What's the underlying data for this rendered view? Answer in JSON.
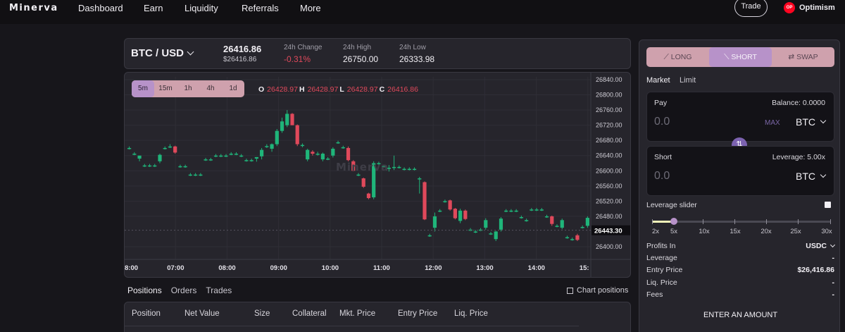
{
  "header": {
    "logo": "Minerva",
    "nav": [
      "Dashboard",
      "Earn",
      "Liquidity",
      "Referrals",
      "More"
    ],
    "trade_button": "Trade",
    "network": {
      "badge": "OP",
      "name": "Optimism"
    }
  },
  "ticker": {
    "pair": "BTC / USD",
    "price": "26416.86",
    "price_usd": "$26416.86",
    "change_label": "24h Change",
    "change_value": "-0.31%",
    "high_label": "24h High",
    "high_value": "26750.00",
    "low_label": "24h Low",
    "low_value": "26333.98"
  },
  "chart": {
    "timeframes": [
      "5m",
      "15m",
      "1h",
      "4h",
      "1d"
    ],
    "active_timeframe": "5m",
    "ohlc": [
      {
        "k": "O",
        "v": "26428.97"
      },
      {
        "k": "H",
        "v": "26428.97"
      },
      {
        "k": "L",
        "v": "26428.97"
      },
      {
        "k": "C",
        "v": "26416.86"
      }
    ],
    "watermark": "Minerva",
    "current_price_label": "26443.30"
  },
  "chart_data": {
    "type": "candlestick",
    "x_tick_labels": [
      "8:00",
      "07:00",
      "08:00",
      "09:00",
      "10:00",
      "11:00",
      "12:00",
      "13:00",
      "14:00",
      "15:"
    ],
    "y_tick_labels": [
      "26840.00",
      "26800.00",
      "26760.00",
      "26720.00",
      "26680.00",
      "26640.00",
      "26600.00",
      "26560.00",
      "26520.00",
      "26480.00",
      "26400.00"
    ],
    "ylim": [
      26380,
      26850
    ],
    "current_price": 26443.3,
    "up_color": "#1fb57a",
    "down_color": "#e0495b",
    "candles": [
      {
        "o": 26660,
        "h": 26664,
        "l": 26656,
        "c": 26660
      },
      {
        "o": 26645,
        "h": 26649,
        "l": 26641,
        "c": 26645
      },
      {
        "o": 26632,
        "h": 26636,
        "l": 26625,
        "c": 26640
      },
      {
        "o": 26614,
        "h": 26618,
        "l": 26610,
        "c": 26614
      },
      {
        "o": 26614,
        "h": 26618,
        "l": 26610,
        "c": 26614
      },
      {
        "o": 26614,
        "h": 26618,
        "l": 26610,
        "c": 26614
      },
      {
        "o": 26625,
        "h": 26645,
        "l": 26620,
        "c": 26642
      },
      {
        "o": 26660,
        "h": 26664,
        "l": 26656,
        "c": 26660
      },
      {
        "o": 26664,
        "h": 26670,
        "l": 26660,
        "c": 26664
      },
      {
        "o": 26664,
        "h": 26666,
        "l": 26645,
        "c": 26648
      },
      {
        "o": 26612,
        "h": 26616,
        "l": 26608,
        "c": 26612
      },
      {
        "o": 26612,
        "h": 26616,
        "l": 26608,
        "c": 26612
      },
      {
        "o": 26590,
        "h": 26594,
        "l": 26586,
        "c": 26590
      },
      {
        "o": 26590,
        "h": 26594,
        "l": 26586,
        "c": 26590
      },
      {
        "o": 26590,
        "h": 26594,
        "l": 26586,
        "c": 26590
      },
      {
        "o": 26630,
        "h": 26634,
        "l": 26626,
        "c": 26630
      },
      {
        "o": 26630,
        "h": 26634,
        "l": 26626,
        "c": 26630
      },
      {
        "o": 26640,
        "h": 26644,
        "l": 26636,
        "c": 26640
      },
      {
        "o": 26640,
        "h": 26644,
        "l": 26636,
        "c": 26640
      },
      {
        "o": 26640,
        "h": 26644,
        "l": 26636,
        "c": 26640
      },
      {
        "o": 26645,
        "h": 26649,
        "l": 26641,
        "c": 26645
      },
      {
        "o": 26645,
        "h": 26649,
        "l": 26641,
        "c": 26645
      },
      {
        "o": 26640,
        "h": 26644,
        "l": 26636,
        "c": 26640
      },
      {
        "o": 26628,
        "h": 26632,
        "l": 26624,
        "c": 26628
      },
      {
        "o": 26628,
        "h": 26632,
        "l": 26624,
        "c": 26628
      },
      {
        "o": 26632,
        "h": 26636,
        "l": 26624,
        "c": 26636
      },
      {
        "o": 26638,
        "h": 26660,
        "l": 26630,
        "c": 26655
      },
      {
        "o": 26665,
        "h": 26670,
        "l": 26660,
        "c": 26665
      },
      {
        "o": 26658,
        "h": 26672,
        "l": 26650,
        "c": 26670
      },
      {
        "o": 26670,
        "h": 26710,
        "l": 26665,
        "c": 26705
      },
      {
        "o": 26705,
        "h": 26740,
        "l": 26700,
        "c": 26730
      },
      {
        "o": 26720,
        "h": 26760,
        "l": 26715,
        "c": 26750
      },
      {
        "o": 26750,
        "h": 26752,
        "l": 26720,
        "c": 26720
      },
      {
        "o": 26720,
        "h": 26722,
        "l": 26665,
        "c": 26670
      },
      {
        "o": 26668,
        "h": 26672,
        "l": 26662,
        "c": 26668
      },
      {
        "o": 26630,
        "h": 26658,
        "l": 26625,
        "c": 26655
      },
      {
        "o": 26650,
        "h": 26654,
        "l": 26640,
        "c": 26645
      },
      {
        "o": 26645,
        "h": 26650,
        "l": 26640,
        "c": 26645
      },
      {
        "o": 26630,
        "h": 26648,
        "l": 26625,
        "c": 26645
      },
      {
        "o": 26632,
        "h": 26636,
        "l": 26628,
        "c": 26632
      },
      {
        "o": 26640,
        "h": 26662,
        "l": 26635,
        "c": 26658
      },
      {
        "o": 26675,
        "h": 26679,
        "l": 26671,
        "c": 26675
      },
      {
        "o": 26662,
        "h": 26666,
        "l": 26658,
        "c": 26662
      },
      {
        "o": 26660,
        "h": 26664,
        "l": 26625,
        "c": 26628
      },
      {
        "o": 26625,
        "h": 26628,
        "l": 26600,
        "c": 26600
      },
      {
        "o": 26590,
        "h": 26594,
        "l": 26586,
        "c": 26590
      },
      {
        "o": 26580,
        "h": 26582,
        "l": 26555,
        "c": 26558
      },
      {
        "o": 26540,
        "h": 26542,
        "l": 26525,
        "c": 26528
      },
      {
        "o": 26530,
        "h": 26625,
        "l": 26525,
        "c": 26620
      },
      {
        "o": 26620,
        "h": 26624,
        "l": 26616,
        "c": 26620
      },
      {
        "o": 26612,
        "h": 26616,
        "l": 26608,
        "c": 26612
      },
      {
        "o": 26605,
        "h": 26615,
        "l": 26598,
        "c": 26608
      },
      {
        "o": 26608,
        "h": 26640,
        "l": 26602,
        "c": 26610
      },
      {
        "o": 26610,
        "h": 26614,
        "l": 26606,
        "c": 26610
      },
      {
        "o": 26605,
        "h": 26609,
        "l": 26601,
        "c": 26605
      },
      {
        "o": 26605,
        "h": 26609,
        "l": 26601,
        "c": 26605
      },
      {
        "o": 26605,
        "h": 26609,
        "l": 26601,
        "c": 26605
      },
      {
        "o": 26580,
        "h": 26584,
        "l": 26540,
        "c": 26580
      },
      {
        "o": 26570,
        "h": 26572,
        "l": 26470,
        "c": 26472
      },
      {
        "o": 26430,
        "h": 26434,
        "l": 26426,
        "c": 26430
      },
      {
        "o": 26450,
        "h": 26490,
        "l": 26440,
        "c": 26480
      },
      {
        "o": 26495,
        "h": 26499,
        "l": 26491,
        "c": 26495
      },
      {
        "o": 26520,
        "h": 26524,
        "l": 26516,
        "c": 26520
      },
      {
        "o": 26522,
        "h": 26524,
        "l": 26495,
        "c": 26498
      },
      {
        "o": 26500,
        "h": 26502,
        "l": 26472,
        "c": 26475
      },
      {
        "o": 26468,
        "h": 26500,
        "l": 26462,
        "c": 26495
      },
      {
        "o": 26495,
        "h": 26498,
        "l": 26470,
        "c": 26473
      },
      {
        "o": 26445,
        "h": 26449,
        "l": 26441,
        "c": 26445
      },
      {
        "o": 26440,
        "h": 26444,
        "l": 26436,
        "c": 26440
      },
      {
        "o": 26445,
        "h": 26449,
        "l": 26441,
        "c": 26445
      },
      {
        "o": 26450,
        "h": 26475,
        "l": 26445,
        "c": 26470
      },
      {
        "o": 26435,
        "h": 26439,
        "l": 26431,
        "c": 26435
      },
      {
        "o": 26420,
        "h": 26442,
        "l": 26415,
        "c": 26440
      },
      {
        "o": 26445,
        "h": 26478,
        "l": 26440,
        "c": 26474
      },
      {
        "o": 26495,
        "h": 26499,
        "l": 26491,
        "c": 26495
      },
      {
        "o": 26495,
        "h": 26499,
        "l": 26491,
        "c": 26495
      },
      {
        "o": 26495,
        "h": 26499,
        "l": 26491,
        "c": 26495
      },
      {
        "o": 26478,
        "h": 26482,
        "l": 26474,
        "c": 26478
      },
      {
        "o": 26470,
        "h": 26474,
        "l": 26466,
        "c": 26470
      },
      {
        "o": 26498,
        "h": 26502,
        "l": 26494,
        "c": 26498
      },
      {
        "o": 26498,
        "h": 26502,
        "l": 26494,
        "c": 26498
      },
      {
        "o": 26498,
        "h": 26502,
        "l": 26494,
        "c": 26498
      },
      {
        "o": 26480,
        "h": 26484,
        "l": 26476,
        "c": 26480
      },
      {
        "o": 26480,
        "h": 26482,
        "l": 26455,
        "c": 26460
      },
      {
        "o": 26455,
        "h": 26459,
        "l": 26451,
        "c": 26455
      },
      {
        "o": 26450,
        "h": 26474,
        "l": 26446,
        "c": 26470
      },
      {
        "o": 26425,
        "h": 26429,
        "l": 26421,
        "c": 26425
      },
      {
        "o": 26420,
        "h": 26424,
        "l": 26416,
        "c": 26420
      },
      {
        "o": 26430,
        "h": 26434,
        "l": 26415,
        "c": 26418
      },
      {
        "o": 26452,
        "h": 26456,
        "l": 26448,
        "c": 26452
      },
      {
        "o": 26455,
        "h": 26480,
        "l": 26450,
        "c": 26476
      }
    ]
  },
  "bottom": {
    "tabs": [
      "Positions",
      "Orders",
      "Trades"
    ],
    "active_tab": "Positions",
    "chart_positions_label": "Chart positions",
    "columns": [
      "Position",
      "Net Value",
      "Size",
      "Collateral",
      "Mkt. Price",
      "Entry Price",
      "Liq. Price"
    ]
  },
  "trade": {
    "directions": [
      "LONG",
      "SHORT",
      "SWAP"
    ],
    "direction_icons": [
      "trend-up-icon",
      "trend-down-icon",
      "swap-icon"
    ],
    "active_direction": "SHORT",
    "order_types": [
      "Market",
      "Limit"
    ],
    "active_order_type": "Market",
    "pay": {
      "label": "Pay",
      "balance": "Balance: 0.0000",
      "amount": "0.0",
      "max": "MAX",
      "token": "BTC"
    },
    "short": {
      "label": "Short",
      "leverage": "Leverage: 5.00x",
      "amount": "0.0",
      "token": "BTC"
    },
    "leverage_slider": {
      "label": "Leverage slider",
      "enabled": true,
      "marks": [
        "2x",
        "5x",
        "10x",
        "15x",
        "20x",
        "25x",
        "30x"
      ],
      "value": 5
    },
    "info": [
      {
        "k": "Profits In",
        "v": "USDC"
      },
      {
        "k": "Leverage",
        "v": "-"
      },
      {
        "k": "Entry Price",
        "v": "$26,416.86"
      },
      {
        "k": "Liq. Price",
        "v": "-"
      },
      {
        "k": "Fees",
        "v": "-"
      }
    ],
    "cta": "ENTER AN AMOUNT"
  },
  "colors": {
    "accent": "#b792c9",
    "segment_bg": "#cfa1ad",
    "negative": "#e0495b",
    "positive": "#1fb57a",
    "network_red": "#ff0420"
  }
}
